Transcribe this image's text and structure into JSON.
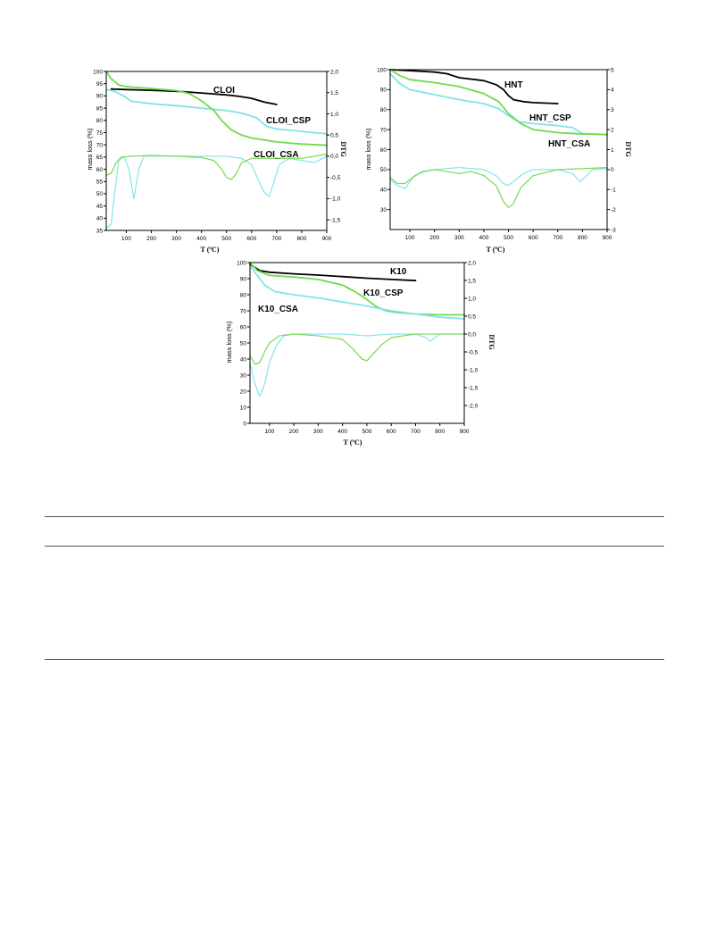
{
  "chart_data": [
    {
      "type": "line",
      "xlabel": "T (ºC)",
      "ylabel": "mass loss (%)",
      "y2label": "DTG",
      "xlim": [
        20,
        900
      ],
      "ylim": [
        35,
        100
      ],
      "y2lim": [
        -1.75,
        2.0
      ],
      "xticks": [
        "100",
        "200",
        "300",
        "400",
        "500",
        "600",
        "700",
        "800",
        "900"
      ],
      "xtick_values": [
        100,
        200,
        300,
        400,
        500,
        600,
        700,
        800,
        900
      ],
      "yticks": [
        "100",
        "95",
        "90",
        "85",
        "80",
        "75",
        "70",
        "65",
        "60",
        "55",
        "50",
        "45",
        "40",
        "35"
      ],
      "ytick_values": [
        100,
        95,
        90,
        85,
        80,
        75,
        70,
        65,
        60,
        55,
        50,
        45,
        40,
        35
      ],
      "y2ticks": [
        "2,0",
        "1,5",
        "1,0",
        "0,5",
        "0,0",
        "-0,5",
        "-1,0",
        "-1,5"
      ],
      "y2tick_values": [
        2.0,
        1.5,
        1.0,
        0.5,
        0.0,
        -0.5,
        -1.0,
        -1.5
      ],
      "series_labels": [
        "CLOI",
        "CLOI_CSP",
        "CLOI_CSA"
      ],
      "series": [
        {
          "name": "CLOI",
          "color": "#000000",
          "axis": "left",
          "style": "solid",
          "x": [
            40,
            100,
            200,
            300,
            400,
            500,
            550,
            600,
            650,
            700
          ],
          "y": [
            92.8,
            92.6,
            92.3,
            91.9,
            91.2,
            90.4,
            89.8,
            89.0,
            87.5,
            86.5
          ]
        },
        {
          "name": "CLOI_CSP",
          "color": "#7fe3ea",
          "axis": "left",
          "style": "solid",
          "x": [
            20,
            50,
            90,
            120,
            200,
            300,
            400,
            500,
            560,
            620,
            660,
            700,
            800,
            900
          ],
          "y": [
            92.5,
            92.0,
            90.0,
            87.8,
            86.8,
            86.0,
            85.0,
            84.0,
            83.0,
            81.0,
            77.5,
            76.5,
            75.5,
            74.5
          ]
        },
        {
          "name": "CLOI_CSA",
          "color": "#72d94a",
          "axis": "left",
          "style": "solid",
          "x": [
            20,
            40,
            70,
            100,
            200,
            300,
            350,
            400,
            450,
            480,
            520,
            560,
            600,
            700,
            800,
            900
          ],
          "y": [
            100,
            97.0,
            94.5,
            93.8,
            93.0,
            92.2,
            91.0,
            88.0,
            84.0,
            80.0,
            76.0,
            74.0,
            72.8,
            71.2,
            70.3,
            69.8
          ]
        },
        {
          "name": "CLOI_CSP",
          "color": "#7fe3ea",
          "axis": "right",
          "style": "dotted",
          "x": [
            20,
            40,
            55,
            70,
            90,
            110,
            130,
            150,
            170,
            200,
            300,
            400,
            500,
            560,
            600,
            630,
            650,
            670,
            690,
            710,
            750,
            800,
            850,
            900
          ],
          "y": [
            -1.7,
            -1.6,
            -0.8,
            -0.1,
            0.0,
            -0.3,
            -1.0,
            -0.3,
            0.0,
            0.0,
            0.0,
            0.0,
            0.0,
            -0.05,
            -0.2,
            -0.6,
            -0.85,
            -0.95,
            -0.6,
            -0.2,
            -0.05,
            -0.1,
            -0.15,
            0.0
          ]
        },
        {
          "name": "CLOI_CSA",
          "color": "#72d94a",
          "axis": "right",
          "style": "dotted",
          "x": [
            20,
            40,
            60,
            80,
            120,
            200,
            300,
            400,
            450,
            480,
            500,
            520,
            540,
            560,
            600,
            700,
            800,
            900
          ],
          "y": [
            -0.45,
            -0.4,
            -0.15,
            -0.02,
            0.0,
            0.02,
            0.0,
            -0.03,
            -0.1,
            -0.3,
            -0.5,
            -0.55,
            -0.4,
            -0.15,
            -0.05,
            -0.05,
            -0.05,
            0.05
          ]
        }
      ]
    },
    {
      "type": "line",
      "xlabel": "T (ºC)",
      "ylabel": "mass loss (%)",
      "y2label": "DTG",
      "xlim": [
        20,
        900
      ],
      "ylim": [
        20,
        100
      ],
      "y2lim": [
        -3,
        5
      ],
      "xticks": [
        "100",
        "200",
        "300",
        "400",
        "500",
        "600",
        "700",
        "800",
        "900"
      ],
      "xtick_values": [
        100,
        200,
        300,
        400,
        500,
        600,
        700,
        800,
        900
      ],
      "yticks": [
        "100",
        "90",
        "80",
        "70",
        "60",
        "50",
        "40",
        "30"
      ],
      "ytick_values": [
        100,
        90,
        80,
        70,
        60,
        50,
        40,
        30
      ],
      "y2ticks": [
        "5",
        "4",
        "3",
        "2",
        "1",
        "0",
        "-1",
        "-2",
        "-3"
      ],
      "y2tick_values": [
        5,
        4,
        3,
        2,
        1,
        0,
        -1,
        -2,
        -3
      ],
      "series_labels": [
        "HNT",
        "HNT_CSP",
        "HNT_CSA"
      ],
      "series": [
        {
          "name": "HNT",
          "color": "#000000",
          "axis": "left",
          "style": "solid",
          "x": [
            20,
            100,
            200,
            250,
            300,
            400,
            450,
            480,
            500,
            520,
            560,
            600,
            700
          ],
          "y": [
            100,
            99.5,
            98.8,
            98.0,
            96.0,
            94.5,
            92.5,
            90.0,
            87.0,
            85.0,
            84.0,
            83.5,
            83.0
          ]
        },
        {
          "name": "HNT_CSP",
          "color": "#7fe3ea",
          "axis": "left",
          "style": "solid",
          "x": [
            20,
            60,
            100,
            200,
            300,
            400,
            460,
            500,
            540,
            600,
            700,
            760,
            800,
            900
          ],
          "y": [
            98.0,
            93.0,
            90.0,
            87.5,
            85.0,
            83.0,
            80.5,
            77.0,
            74.0,
            73.0,
            72.0,
            71.0,
            68.0,
            67.5
          ]
        },
        {
          "name": "HNT_CSA",
          "color": "#72d94a",
          "axis": "left",
          "style": "solid",
          "x": [
            20,
            60,
            100,
            200,
            300,
            400,
            460,
            500,
            550,
            600,
            700,
            800,
            900
          ],
          "y": [
            100,
            97.0,
            95.0,
            93.5,
            91.5,
            88.0,
            84.0,
            78.0,
            73.0,
            70.0,
            68.5,
            67.8,
            67.5
          ]
        },
        {
          "name": "HNT_CSP",
          "color": "#7fe3ea",
          "axis": "right",
          "style": "dotted",
          "x": [
            20,
            50,
            80,
            100,
            120,
            160,
            200,
            300,
            400,
            450,
            480,
            500,
            520,
            560,
            600,
            700,
            760,
            790,
            810,
            840,
            900
          ],
          "y": [
            -0.5,
            -0.8,
            -0.95,
            -0.6,
            -0.3,
            -0.1,
            0.0,
            0.1,
            0.0,
            -0.3,
            -0.7,
            -0.8,
            -0.6,
            -0.2,
            0.0,
            0.0,
            -0.2,
            -0.6,
            -0.4,
            0.0,
            0.05
          ]
        },
        {
          "name": "HNT_CSA",
          "color": "#72d94a",
          "axis": "right",
          "style": "dotted",
          "x": [
            20,
            50,
            80,
            110,
            150,
            200,
            300,
            350,
            400,
            450,
            480,
            500,
            520,
            550,
            600,
            700,
            800,
            900
          ],
          "y": [
            -0.4,
            -0.7,
            -0.7,
            -0.4,
            -0.1,
            0.0,
            -0.2,
            -0.1,
            -0.3,
            -0.8,
            -1.6,
            -1.9,
            -1.7,
            -0.9,
            -0.3,
            0.0,
            0.05,
            0.1
          ]
        }
      ]
    },
    {
      "type": "line",
      "xlabel": "T (ºC)",
      "ylabel": "mass loss (%)",
      "y2label": "DTG",
      "xlim": [
        20,
        900
      ],
      "ylim": [
        0,
        100
      ],
      "y2lim": [
        -2.5,
        2.0
      ],
      "xticks": [
        "100",
        "200",
        "300",
        "400",
        "500",
        "600",
        "700",
        "800",
        "900"
      ],
      "xtick_values": [
        100,
        200,
        300,
        400,
        500,
        600,
        700,
        800,
        900
      ],
      "yticks": [
        "100",
        "90",
        "80",
        "70",
        "60",
        "50",
        "40",
        "30",
        "20",
        "10",
        "0"
      ],
      "ytick_values": [
        100,
        90,
        80,
        70,
        60,
        50,
        40,
        30,
        20,
        10,
        0
      ],
      "y2ticks": [
        "2,0",
        "1,5",
        "1,0",
        "0,5",
        "0,0",
        "-0,5",
        "-1,0",
        "-1,5",
        "-2,0"
      ],
      "y2tick_values": [
        2.0,
        1.5,
        1.0,
        0.5,
        0.0,
        -0.5,
        -1.0,
        -1.5,
        -2.0
      ],
      "series_labels": [
        "K10",
        "K10_CSP",
        "K10_CSA"
      ],
      "series": [
        {
          "name": "K10",
          "color": "#000000",
          "axis": "left",
          "style": "solid",
          "x": [
            20,
            60,
            100,
            200,
            300,
            400,
            500,
            600,
            700
          ],
          "y": [
            99.0,
            95.0,
            94.0,
            93.0,
            92.2,
            91.3,
            90.3,
            89.5,
            88.8
          ]
        },
        {
          "name": "K10_CSP",
          "color": "#72d94a",
          "axis": "left",
          "style": "solid",
          "x": [
            20,
            50,
            100,
            200,
            300,
            400,
            450,
            500,
            540,
            580,
            620,
            700,
            800,
            900
          ],
          "y": [
            100,
            95.0,
            92.0,
            91.0,
            89.5,
            86.0,
            82.0,
            77.0,
            72.5,
            70.0,
            69.0,
            68.0,
            67.5,
            67.5
          ]
        },
        {
          "name": "K10_CSA",
          "color": "#7fe3ea",
          "axis": "left",
          "style": "solid",
          "x": [
            20,
            50,
            80,
            120,
            200,
            300,
            400,
            500,
            600,
            700,
            800,
            900
          ],
          "y": [
            98.0,
            92.0,
            86.0,
            82.0,
            80.0,
            78.0,
            75.5,
            73.0,
            70.0,
            68.0,
            66.0,
            65.0
          ]
        },
        {
          "name": "K10_CSA",
          "color": "#7fe3ea",
          "axis": "right",
          "style": "dotted",
          "x": [
            20,
            40,
            60,
            80,
            100,
            130,
            160,
            200,
            300,
            400,
            500,
            600,
            700,
            740,
            760,
            780,
            800,
            900
          ],
          "y": [
            -0.8,
            -1.4,
            -1.75,
            -1.4,
            -0.8,
            -0.3,
            -0.05,
            0.0,
            0.0,
            0.0,
            -0.05,
            0.0,
            0.0,
            -0.1,
            -0.2,
            -0.1,
            0.0,
            0.0
          ]
        },
        {
          "name": "K10_CSP",
          "color": "#72d94a",
          "axis": "right",
          "style": "dotted",
          "x": [
            20,
            40,
            60,
            80,
            100,
            140,
            200,
            300,
            400,
            440,
            480,
            500,
            520,
            560,
            600,
            700,
            800,
            900
          ],
          "y": [
            -0.6,
            -0.85,
            -0.8,
            -0.5,
            -0.25,
            -0.05,
            0.0,
            -0.05,
            -0.15,
            -0.4,
            -0.7,
            -0.75,
            -0.6,
            -0.3,
            -0.1,
            0.0,
            0.0,
            0.0
          ]
        }
      ]
    }
  ]
}
